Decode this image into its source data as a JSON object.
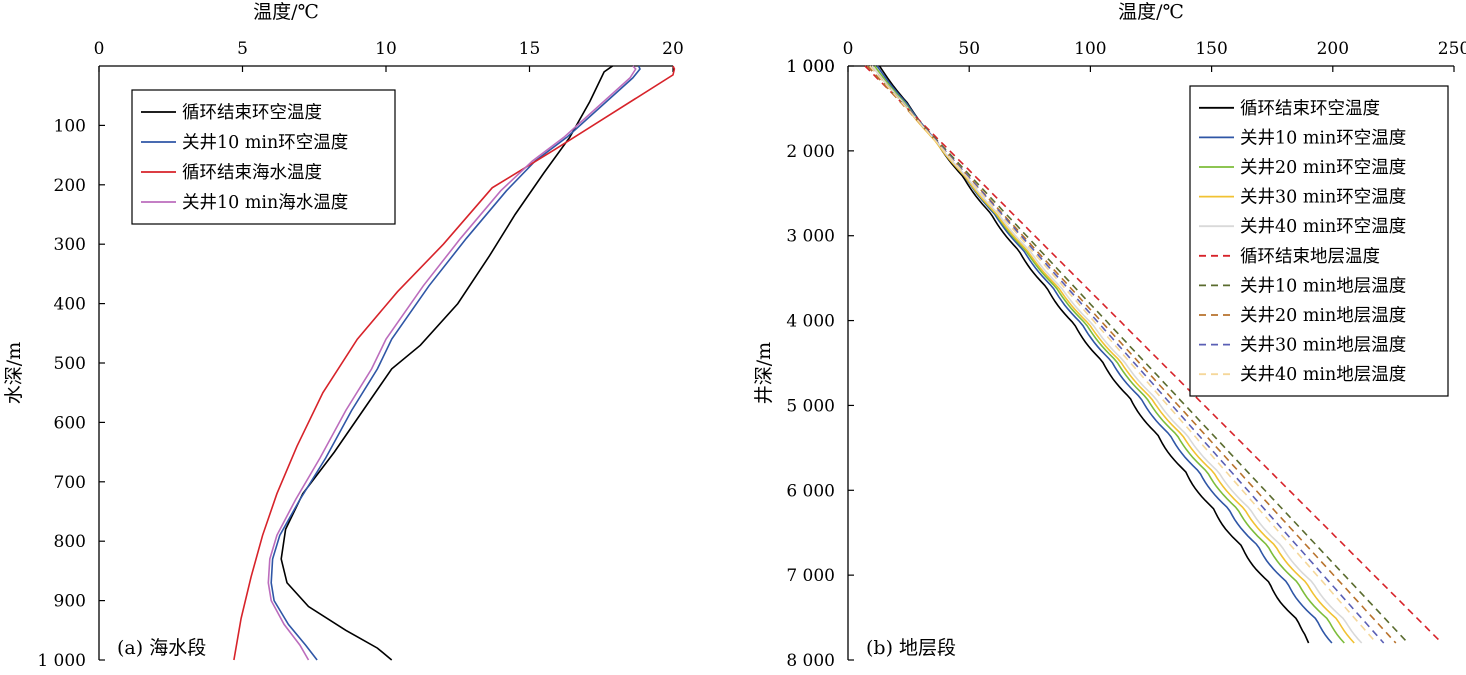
{
  "chart_data": [
    {
      "type": "line",
      "panel_label": "(a) 海水段",
      "xlabel": "温度/℃",
      "ylabel": "水深/m",
      "xlim": [
        0,
        20
      ],
      "ylim": [
        0,
        1000
      ],
      "y_inverted": true,
      "x_axis_position": "top",
      "x_ticks": [
        "0",
        "5",
        "10",
        "15",
        "20"
      ],
      "x_tick_values": [
        0,
        5,
        10,
        15,
        20
      ],
      "y_ticks": [
        "100",
        "200",
        "300",
        "400",
        "500",
        "600",
        "700",
        "800",
        "900",
        "1 000"
      ],
      "y_tick_values": [
        100,
        200,
        300,
        400,
        500,
        600,
        700,
        800,
        900,
        1000
      ],
      "grid": false,
      "legend_position": "top-left",
      "series": [
        {
          "name": "循环结束环空温度",
          "color": "#000000",
          "dash": "solid",
          "points": [
            [
              17.9,
              0
            ],
            [
              17.8,
              3
            ],
            [
              17.6,
              10
            ],
            [
              17.1,
              60
            ],
            [
              16.4,
              120
            ],
            [
              15.5,
              180
            ],
            [
              14.5,
              250
            ],
            [
              13.6,
              320
            ],
            [
              12.5,
              400
            ],
            [
              11.2,
              470
            ],
            [
              10.2,
              510
            ],
            [
              9.2,
              580
            ],
            [
              8.2,
              650
            ],
            [
              7.1,
              720
            ],
            [
              6.5,
              780
            ],
            [
              6.35,
              830
            ],
            [
              6.55,
              870
            ],
            [
              7.3,
              910
            ],
            [
              8.6,
              950
            ],
            [
              9.7,
              980
            ],
            [
              10.2,
              1000
            ]
          ]
        },
        {
          "name": "关井10 min环空温度",
          "color": "#2f56a6",
          "dash": "solid",
          "points": [
            [
              18.8,
              0
            ],
            [
              18.85,
              5
            ],
            [
              18.6,
              20
            ],
            [
              16.3,
              120
            ],
            [
              15.2,
              160
            ],
            [
              14.2,
              210
            ],
            [
              12.8,
              290
            ],
            [
              11.5,
              370
            ],
            [
              10.2,
              460
            ],
            [
              9.7,
              510
            ],
            [
              8.8,
              580
            ],
            [
              7.9,
              660
            ],
            [
              7.0,
              730
            ],
            [
              6.3,
              790
            ],
            [
              6.05,
              830
            ],
            [
              6.0,
              870
            ],
            [
              6.1,
              900
            ],
            [
              6.6,
              940
            ],
            [
              7.2,
              975
            ],
            [
              7.6,
              1000
            ]
          ]
        },
        {
          "name": "循环结束海水温度",
          "color": "#d7232a",
          "dash": "solid",
          "points": [
            [
              20.0,
              0
            ],
            [
              20.05,
              5
            ],
            [
              20.0,
              15
            ],
            [
              15.9,
              140
            ],
            [
              13.7,
              205
            ],
            [
              12.0,
              300
            ],
            [
              10.4,
              380
            ],
            [
              9.0,
              460
            ],
            [
              7.8,
              550
            ],
            [
              6.9,
              640
            ],
            [
              6.2,
              720
            ],
            [
              5.7,
              790
            ],
            [
              5.3,
              860
            ],
            [
              4.95,
              930
            ],
            [
              4.7,
              1000
            ]
          ]
        },
        {
          "name": "关井10 min海水温度",
          "color": "#bc6dbd",
          "dash": "solid",
          "points": [
            [
              18.6,
              0
            ],
            [
              18.7,
              5
            ],
            [
              18.5,
              20
            ],
            [
              16.2,
              120
            ],
            [
              15.1,
              160
            ],
            [
              14.0,
              210
            ],
            [
              12.6,
              290
            ],
            [
              11.3,
              370
            ],
            [
              10.0,
              460
            ],
            [
              9.5,
              510
            ],
            [
              8.6,
              580
            ],
            [
              7.7,
              660
            ],
            [
              6.85,
              730
            ],
            [
              6.2,
              790
            ],
            [
              5.95,
              830
            ],
            [
              5.9,
              870
            ],
            [
              6.0,
              900
            ],
            [
              6.45,
              940
            ],
            [
              7.0,
              975
            ],
            [
              7.3,
              1000
            ]
          ]
        }
      ]
    },
    {
      "type": "line",
      "panel_label": "(b) 地层段",
      "xlabel": "温度/℃",
      "ylabel": "井深/m",
      "xlim": [
        0,
        250
      ],
      "ylim": [
        1000,
        8000
      ],
      "y_inverted": true,
      "x_axis_position": "top",
      "x_ticks": [
        "0",
        "50",
        "100",
        "150",
        "200",
        "250"
      ],
      "x_tick_values": [
        0,
        50,
        100,
        150,
        200,
        250
      ],
      "y_ticks": [
        "1 000",
        "2 000",
        "3 000",
        "4 000",
        "5 000",
        "6 000",
        "7 000",
        "8 000"
      ],
      "y_tick_values": [
        1000,
        2000,
        3000,
        4000,
        5000,
        6000,
        7000,
        8000
      ],
      "grid": false,
      "legend_position": "top-right",
      "series": [
        {
          "name": "循环结束环空温度",
          "color": "#000000",
          "dash": "solid",
          "start": [
            13,
            1000
          ],
          "end": [
            190,
            7700
          ],
          "bottom": [
            190,
            7800
          ],
          "wave": 1.6
        },
        {
          "name": "关井10 min环空温度",
          "color": "#2f56a6",
          "dash": "solid",
          "start": [
            12,
            1000
          ],
          "end": [
            201,
            7800
          ],
          "wave": 1.5
        },
        {
          "name": "关井20 min环空温度",
          "color": "#7dbd3a",
          "dash": "solid",
          "start": [
            11,
            1000
          ],
          "end": [
            206,
            7800
          ],
          "wave": 1.4
        },
        {
          "name": "关井30 min环空温度",
          "color": "#f1c232",
          "dash": "solid",
          "start": [
            10,
            1000
          ],
          "end": [
            210,
            7800
          ],
          "wave": 1.3
        },
        {
          "name": "关井40 min环空温度",
          "color": "#d9d9d9",
          "dash": "solid",
          "start": [
            10,
            1000
          ],
          "end": [
            213,
            7800
          ],
          "wave": 1.2
        },
        {
          "name": "循环结束地层温度",
          "color": "#d7232a",
          "dash": "dashed",
          "start": [
            7,
            1000
          ],
          "end": [
            245,
            7800
          ]
        },
        {
          "name": "关井10 min地层温度",
          "color": "#5a6b2e",
          "dash": "dashed",
          "start": [
            8,
            1000
          ],
          "end": [
            231,
            7800
          ]
        },
        {
          "name": "关井20 min地层温度",
          "color": "#b8722c",
          "dash": "dashed",
          "start": [
            8,
            1000
          ],
          "end": [
            226,
            7800
          ]
        },
        {
          "name": "关井30 min地层温度",
          "color": "#5a5fb5",
          "dash": "dashed",
          "start": [
            9,
            1000
          ],
          "end": [
            221,
            7800
          ]
        },
        {
          "name": "关井40 min地层温度",
          "color": "#f5d79a",
          "dash": "dashed",
          "start": [
            9,
            1000
          ],
          "end": [
            218,
            7800
          ]
        }
      ]
    }
  ]
}
